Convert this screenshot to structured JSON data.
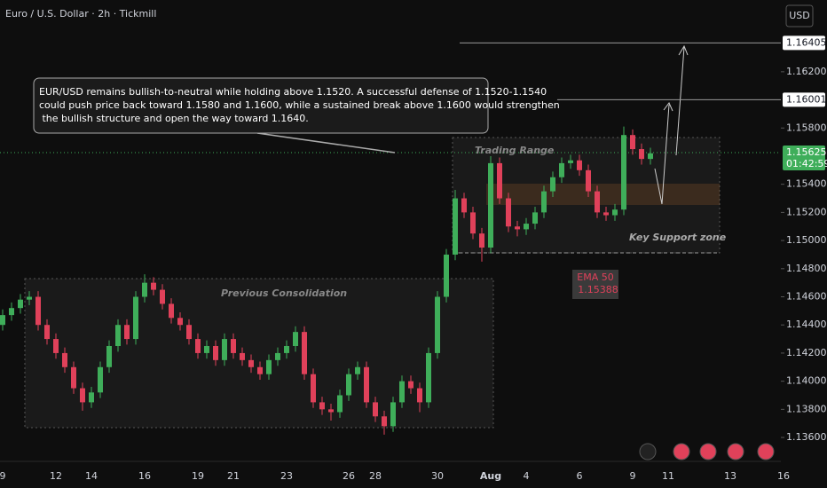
{
  "chart_data": {
    "type": "candlestick",
    "title": "Euro / U.S. Dollar · 2h · Tickmill",
    "currency": "USD",
    "up_color": "#3fae5a",
    "down_color": "#e0415a",
    "ylim": [
      1.1343,
      1.1671
    ],
    "yticks": [
      {
        "value": 1.136,
        "label": "1.13600"
      },
      {
        "value": 1.138,
        "label": "1.13800"
      },
      {
        "value": 1.14,
        "label": "1.14000"
      },
      {
        "value": 1.142,
        "label": "1.14200"
      },
      {
        "value": 1.144,
        "label": "1.14400"
      },
      {
        "value": 1.146,
        "label": "1.14600"
      },
      {
        "value": 1.148,
        "label": "1.14800"
      },
      {
        "value": 1.15,
        "label": "1.15000"
      },
      {
        "value": 1.152,
        "label": "1.15200"
      },
      {
        "value": 1.154,
        "label": "1.15400"
      },
      {
        "value": 1.158,
        "label": "1.15800"
      },
      {
        "value": 1.162,
        "label": "1.16200"
      }
    ],
    "levels": [
      {
        "value": 1.16405,
        "label": "1.16405"
      },
      {
        "value": 1.16001,
        "label": "1.16001"
      }
    ],
    "current_price": {
      "value": 1.15625,
      "label": "1.15625",
      "countdown": "01:42:59"
    },
    "categories": [
      "9",
      null,
      null,
      null,
      null,
      null,
      "12",
      null,
      null,
      null,
      "14",
      null,
      null,
      null,
      null,
      null,
      "16",
      null,
      null,
      null,
      null,
      null,
      "19",
      null,
      null,
      null,
      "21",
      null,
      null,
      null,
      null,
      null,
      "23",
      null,
      null,
      null,
      null,
      null,
      null,
      "26",
      null,
      null,
      "28",
      null,
      null,
      null,
      null,
      null,
      null,
      "30",
      null,
      null,
      null,
      null,
      null,
      "Aug",
      null,
      null,
      null,
      "4",
      null,
      null,
      null,
      null,
      null,
      "6",
      null,
      null,
      null,
      null,
      null,
      "9",
      null,
      null,
      null,
      "11",
      null,
      null,
      null,
      null,
      null,
      null,
      "13",
      null,
      null,
      null,
      null,
      null,
      "16"
    ],
    "open": [
      1.144,
      1.1447,
      1.1452,
      1.1458,
      1.146,
      1.144,
      1.143,
      1.142,
      1.141,
      1.1395,
      1.1385,
      1.1392,
      1.141,
      1.1425,
      1.144,
      1.143,
      1.146,
      1.147,
      1.1465,
      1.1455,
      1.1445,
      1.144,
      1.143,
      1.142,
      1.1425,
      1.1415,
      1.143,
      1.142,
      1.1415,
      1.141,
      1.1405,
      1.1415,
      1.142,
      1.1425,
      1.1435,
      1.1405,
      1.1385,
      1.138,
      1.1378,
      1.139,
      1.1405,
      1.141,
      1.1385,
      1.1375,
      1.1368,
      1.1385,
      1.14,
      1.1395,
      1.1385,
      1.142,
      1.146,
      1.149,
      1.153,
      1.152,
      1.1505,
      1.1495,
      1.1555,
      1.153,
      1.151,
      1.1508,
      1.1512,
      1.152,
      1.1535,
      1.1545,
      1.1555,
      1.1557,
      1.155,
      1.1535,
      1.152,
      1.1518,
      1.1522,
      1.1575,
      1.1565,
      1.1558,
      null,
      null,
      null,
      null,
      null,
      null,
      null,
      null,
      null,
      null,
      null,
      null,
      null,
      null,
      null
    ],
    "high": [
      1.1451,
      1.1456,
      1.1462,
      1.1464,
      1.1464,
      1.1444,
      1.1434,
      1.1424,
      1.1414,
      1.1399,
      1.1396,
      1.1414,
      1.1429,
      1.1444,
      1.1444,
      1.1464,
      1.1476,
      1.1474,
      1.1469,
      1.1459,
      1.1449,
      1.1444,
      1.1434,
      1.1429,
      1.1429,
      1.1434,
      1.1434,
      1.1424,
      1.1419,
      1.1414,
      1.1419,
      1.1424,
      1.1429,
      1.1439,
      1.1439,
      1.1409,
      1.1389,
      1.1384,
      1.1394,
      1.1409,
      1.1414,
      1.1414,
      1.1389,
      1.1379,
      1.1389,
      1.1404,
      1.1404,
      1.1399,
      1.1424,
      1.1464,
      1.1494,
      1.1536,
      1.1534,
      1.1524,
      1.1509,
      1.156,
      1.1559,
      1.1534,
      1.1514,
      1.1516,
      1.1524,
      1.1539,
      1.1549,
      1.1559,
      1.1561,
      1.1561,
      1.1554,
      1.1539,
      1.1524,
      1.1526,
      1.1581,
      1.1579,
      1.1569,
      1.1566,
      null,
      null,
      null,
      null,
      null,
      null,
      null,
      null,
      null,
      null,
      null,
      null,
      null,
      null,
      null
    ],
    "low": [
      1.1436,
      1.1443,
      1.1448,
      1.1454,
      1.1436,
      1.1426,
      1.1416,
      1.1406,
      1.1391,
      1.1379,
      1.1381,
      1.1388,
      1.1406,
      1.1421,
      1.1426,
      1.1426,
      1.1456,
      1.1461,
      1.1451,
      1.1441,
      1.1436,
      1.1426,
      1.1416,
      1.1416,
      1.1411,
      1.1411,
      1.1416,
      1.1411,
      1.1406,
      1.1401,
      1.1401,
      1.1411,
      1.1416,
      1.1421,
      1.1401,
      1.1381,
      1.1376,
      1.1372,
      1.1374,
      1.1386,
      1.1401,
      1.1381,
      1.1371,
      1.1362,
      1.1364,
      1.1381,
      1.1391,
      1.1378,
      1.1381,
      1.1416,
      1.1456,
      1.1486,
      1.1516,
      1.1501,
      1.1485,
      1.1491,
      1.1526,
      1.1506,
      1.1503,
      1.1504,
      1.1508,
      1.1516,
      1.1531,
      1.1541,
      1.1551,
      1.1546,
      1.1531,
      1.1516,
      1.1514,
      1.1514,
      1.1518,
      1.1561,
      1.1554,
      1.1554,
      null,
      null,
      null,
      null,
      null,
      null,
      null,
      null,
      null,
      null,
      null,
      null,
      null,
      null,
      null
    ],
    "close": [
      1.1447,
      1.1452,
      1.1458,
      1.146,
      1.144,
      1.143,
      1.142,
      1.141,
      1.1395,
      1.1385,
      1.1392,
      1.141,
      1.1425,
      1.144,
      1.143,
      1.146,
      1.147,
      1.1465,
      1.1455,
      1.1445,
      1.144,
      1.143,
      1.142,
      1.1425,
      1.1415,
      1.143,
      1.142,
      1.1415,
      1.141,
      1.1405,
      1.1415,
      1.142,
      1.1425,
      1.1435,
      1.1405,
      1.1385,
      1.138,
      1.1378,
      1.139,
      1.1405,
      1.141,
      1.1385,
      1.1375,
      1.1368,
      1.1385,
      1.14,
      1.1395,
      1.1385,
      1.142,
      1.146,
      1.149,
      1.153,
      1.152,
      1.1505,
      1.1495,
      1.1555,
      1.153,
      1.151,
      1.1508,
      1.1512,
      1.152,
      1.1535,
      1.1545,
      1.1555,
      1.1557,
      1.155,
      1.1535,
      1.152,
      1.1518,
      1.1522,
      1.1575,
      1.1565,
      1.1558,
      1.1562,
      null,
      null,
      null,
      null,
      null,
      null,
      null,
      null,
      null,
      null,
      null,
      null,
      null,
      null,
      null
    ],
    "note_lines": [
      "EUR/USD remains bullish-to-neutral while holding above 1.1520. A successful defense of 1.1520-1.1540",
      "could push price back toward 1.1580 and 1.1600, while a sustained break above 1.1600 would strengthen",
      " the bullish structure and open the way toward 1.1640."
    ],
    "zone_labels": {
      "consolidation": "Previous Consolidation",
      "range": "Trading Range",
      "support": "Key Support zone"
    },
    "ema": {
      "name": "EMA 50",
      "label": "1.15388"
    }
  }
}
